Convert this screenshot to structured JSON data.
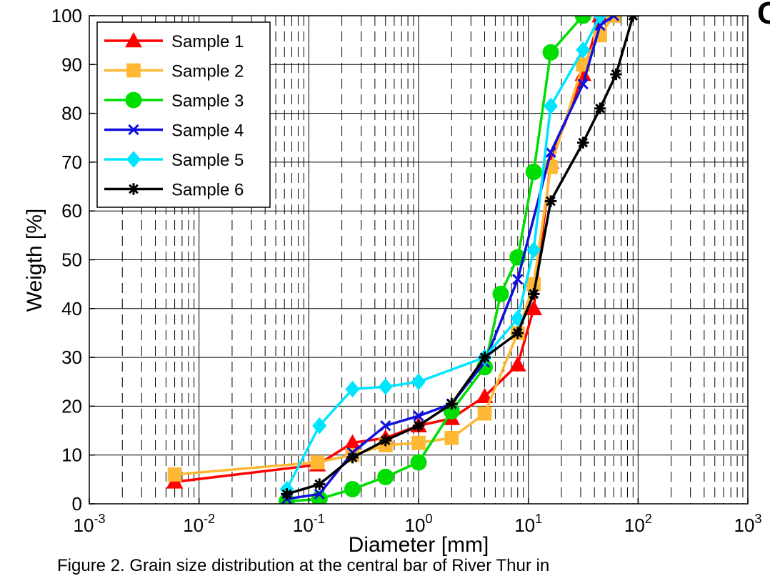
{
  "chart_data": {
    "type": "line",
    "xscale": "log",
    "xlabel": "Diameter [mm]",
    "ylabel": "Weigth [%]",
    "xlim": [
      0.001,
      1000
    ],
    "ylim": [
      0,
      100
    ],
    "grid": true,
    "legend_position": "top-left",
    "x_ticks": [
      {
        "base": "10",
        "exp": "-3"
      },
      {
        "base": "10",
        "exp": "-2"
      },
      {
        "base": "10",
        "exp": "-1"
      },
      {
        "base": "10",
        "exp": "0"
      },
      {
        "base": "10",
        "exp": "1"
      },
      {
        "base": "10",
        "exp": "2"
      },
      {
        "base": "10",
        "exp": "3"
      }
    ],
    "y_ticks": [
      "0",
      "10",
      "20",
      "30",
      "40",
      "50",
      "60",
      "70",
      "80",
      "90",
      "100"
    ],
    "series": [
      {
        "name": "Sample 1",
        "color": "#ff0000",
        "marker": "triangle",
        "points": [
          [
            0.006,
            4.5
          ],
          [
            0.12,
            8
          ],
          [
            0.25,
            12.5
          ],
          [
            0.5,
            13.5
          ],
          [
            1,
            16
          ],
          [
            2,
            17.5
          ],
          [
            4,
            22
          ],
          [
            8,
            28.5
          ],
          [
            11.2,
            40
          ],
          [
            16,
            70
          ],
          [
            31.5,
            88
          ],
          [
            45,
            100
          ]
        ]
      },
      {
        "name": "Sample 2",
        "color": "#ffb833",
        "marker": "square",
        "points": [
          [
            0.006,
            6
          ],
          [
            0.12,
            8.5
          ],
          [
            0.25,
            10
          ],
          [
            0.5,
            12
          ],
          [
            1,
            12.5
          ],
          [
            2,
            13.5
          ],
          [
            4,
            18.5
          ],
          [
            8,
            35
          ],
          [
            11.2,
            45
          ],
          [
            16,
            69
          ],
          [
            31.5,
            90
          ],
          [
            45,
            96
          ],
          [
            60,
            100
          ]
        ]
      },
      {
        "name": "Sample 3",
        "color": "#00dd00",
        "marker": "circle",
        "points": [
          [
            0.063,
            0.5
          ],
          [
            0.125,
            1
          ],
          [
            0.25,
            3
          ],
          [
            0.5,
            5.5
          ],
          [
            1,
            8.5
          ],
          [
            2,
            19
          ],
          [
            4,
            28
          ],
          [
            5.6,
            43
          ],
          [
            8,
            50.5
          ],
          [
            11.2,
            68
          ],
          [
            16,
            92.5
          ],
          [
            31.5,
            100
          ]
        ]
      },
      {
        "name": "Sample 4",
        "color": "#1010dd",
        "marker": "x",
        "points": [
          [
            0.063,
            1
          ],
          [
            0.125,
            2
          ],
          [
            0.25,
            10.5
          ],
          [
            0.5,
            16
          ],
          [
            1,
            18
          ],
          [
            2,
            20.5
          ],
          [
            4,
            29
          ],
          [
            8,
            46
          ],
          [
            16,
            72
          ],
          [
            31.5,
            86
          ],
          [
            45,
            98
          ],
          [
            60,
            100
          ]
        ]
      },
      {
        "name": "Sample 5",
        "color": "#00e5ff",
        "marker": "diamond",
        "points": [
          [
            0.063,
            3
          ],
          [
            0.125,
            16
          ],
          [
            0.25,
            23.5
          ],
          [
            0.5,
            24
          ],
          [
            1,
            25
          ],
          [
            4,
            30
          ],
          [
            8,
            38
          ],
          [
            11.2,
            52
          ],
          [
            16,
            81.5
          ],
          [
            31.5,
            93
          ],
          [
            45,
            100
          ]
        ]
      },
      {
        "name": "Sample 6",
        "color": "#000000",
        "marker": "asterisk",
        "points": [
          [
            0.063,
            2
          ],
          [
            0.125,
            4
          ],
          [
            0.25,
            9.5
          ],
          [
            0.5,
            13
          ],
          [
            1,
            16
          ],
          [
            2,
            20.5
          ],
          [
            4,
            30
          ],
          [
            8,
            35
          ],
          [
            11.2,
            43
          ],
          [
            16,
            62
          ],
          [
            31.5,
            74
          ],
          [
            45,
            81
          ],
          [
            63,
            88
          ],
          [
            90,
            100
          ]
        ]
      }
    ]
  },
  "caption": "Figure 2. Grain size distribution at the central bar of River Thur in",
  "corner_label": "C"
}
